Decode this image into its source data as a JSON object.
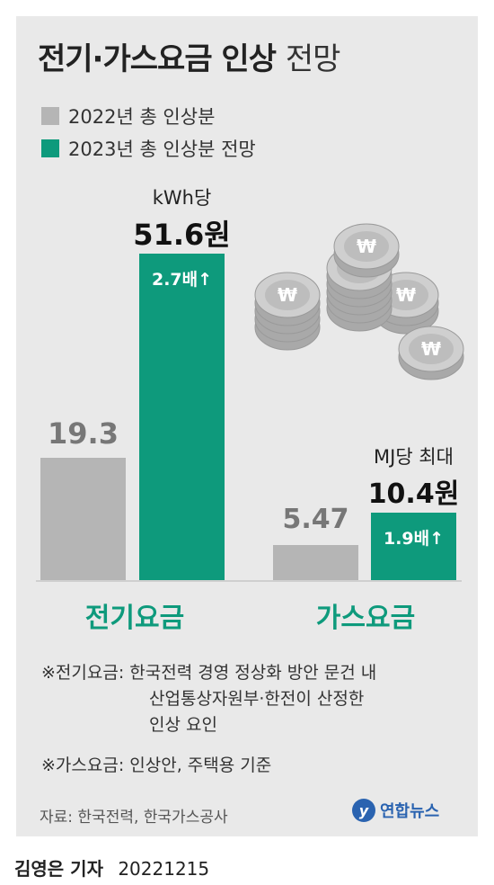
{
  "title": {
    "bold": "전기·가스요금 인상",
    "light": "전망"
  },
  "legend": [
    {
      "label": "2022년 총 인상분",
      "color": "#b5b5b5"
    },
    {
      "label": "2023년 총 인상분 전망",
      "color": "#0e9a7c"
    }
  ],
  "chart_data": {
    "type": "bar",
    "title": "전기·가스요금 인상 전망",
    "categories": [
      "전기요금",
      "가스요금"
    ],
    "series": [
      {
        "name": "2022년 총 인상분",
        "values": [
          19.3,
          5.47
        ]
      },
      {
        "name": "2023년 총 인상분 전망",
        "values": [
          51.6,
          10.4
        ]
      }
    ],
    "labels": {
      "electric_2022": "19.3",
      "electric_2023": "51.6원",
      "electric_unit": "kWh당",
      "electric_multiple": "2.7배↑",
      "gas_2022": "5.47",
      "gas_2023": "10.4원",
      "gas_unit": "MJ당 최대",
      "gas_multiple": "1.9배↑"
    },
    "colors": {
      "y2022": "#b5b5b5",
      "y2023": "#0e9a7c"
    }
  },
  "notes": {
    "electric": [
      "※전기요금: 한국전력 경영 정상화 방안 문건 내",
      "산업통상자원부·한전이 산정한",
      "인상 요인"
    ],
    "gas": "※가스요금: 인상안, 주택용 기준"
  },
  "source": "자료: 한국전력, 한국가스공사",
  "logo": {
    "mark": "y",
    "text": "연합뉴스"
  },
  "footer": {
    "reporter": "김영은 기자",
    "date": "20221215"
  },
  "coin_symbol": "₩"
}
